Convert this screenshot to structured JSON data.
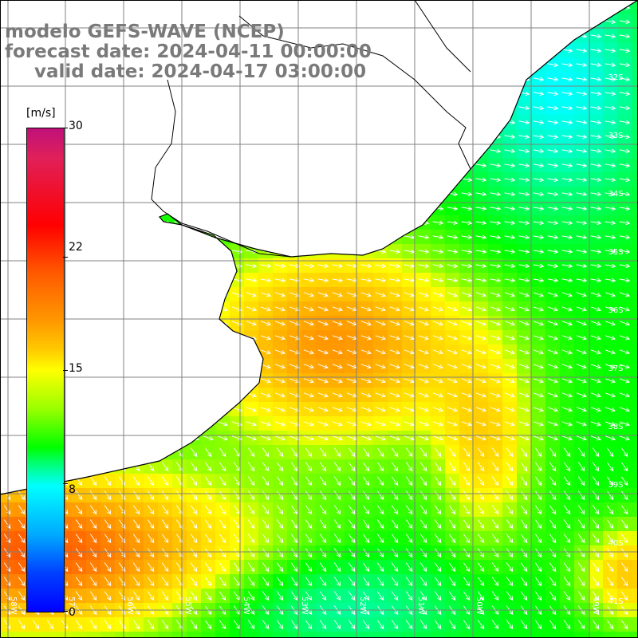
{
  "title": {
    "line1": "modelo GEFS-WAVE (NCEP)",
    "line2": "forecast date: 2024-04-11 00:00:00",
    "line3": "valid date: 2024-04-17 03:00:00"
  },
  "colorbar": {
    "unit": "[m/s]",
    "ticks": [
      "30",
      "22",
      "15",
      "8",
      "0"
    ],
    "range": [
      0,
      30
    ]
  },
  "lat_labels": [
    "32S",
    "33S",
    "34S",
    "35S",
    "36S",
    "37S",
    "38S",
    "39S",
    "40S",
    "41S"
  ],
  "lon_labels": [
    "58W",
    "57W",
    "56W",
    "55W",
    "54W",
    "53W",
    "52W",
    "51W",
    "50W",
    "49W"
  ],
  "colors": {
    "land": "#ffffff",
    "grid": "#808080",
    "coast": "#000000",
    "title": "#7a7a7a"
  }
}
